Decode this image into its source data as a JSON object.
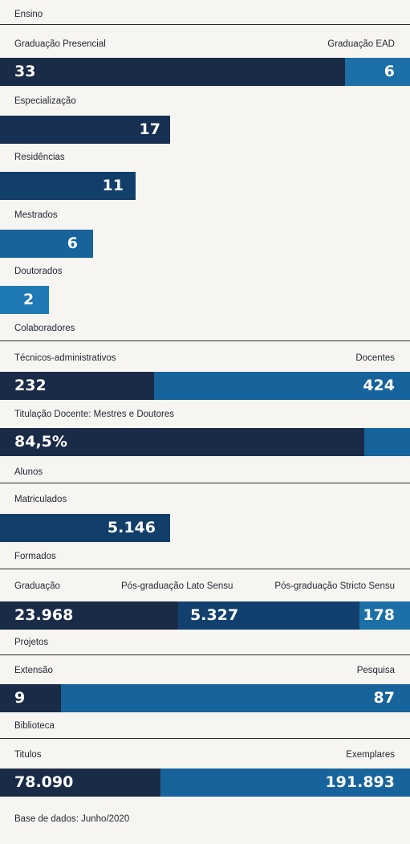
{
  "colors": {
    "background": "#f6f5f1",
    "dark": "#1a2b48",
    "mid": "#11406e",
    "blue": "#17639b",
    "light": "#1f79b4"
  },
  "sections": {
    "ensino": "Ensino",
    "colaboradores": "Colaboradores",
    "alunos": "Alunos",
    "formados": "Formados",
    "projetos": "Projetos",
    "biblioteca": "Biblioteca"
  },
  "labels": {
    "graduacao_presencial": "Graduação Presencial",
    "graduacao_ead": "Graduação EAD",
    "especializacao": "Especialização",
    "residencias": "Residências",
    "mestrados": "Mestrados",
    "doutorados": "Doutorados",
    "tecnicos": "Técnicos-administrativos",
    "docentes": "Docentes",
    "titulacao": "Titulação Docente: Mestres e Doutores",
    "matriculados": "Matriculados",
    "graduacao": "Graduação",
    "lato": "Pós-graduação Lato Sensu",
    "stricto": "Pós-graduação Stricto Sensu",
    "extensao": "Extensão",
    "pesquisa": "Pesquisa",
    "titulos": "Titulos",
    "exemplares": "Exemplares"
  },
  "values": {
    "graduacao_presencial": "33",
    "graduacao_ead": "6",
    "especializacao": "17",
    "residencias": "11",
    "mestrados": "6",
    "doutorados": "2",
    "tecnicos": "232",
    "docentes": "424",
    "titulacao": "84,5%",
    "matriculados": "5.146",
    "graduacao": "23.968",
    "lato": "5.327",
    "stricto": "178",
    "extensao": "9",
    "pesquisa": "87",
    "titulos": "78.090",
    "exemplares": "191.893"
  },
  "footer": "Base de dados: Junho/2020",
  "chart_data": [
    {
      "type": "bar",
      "title": "Ensino",
      "categories": [
        "Graduação Presencial",
        "Graduação EAD"
      ],
      "values": [
        33,
        6
      ]
    },
    {
      "type": "bar",
      "categories": [
        "Especialização",
        "Residências",
        "Mestrados",
        "Doutorados"
      ],
      "values": [
        17,
        11,
        6,
        2
      ]
    },
    {
      "type": "bar",
      "title": "Colaboradores",
      "categories": [
        "Técnicos-administrativos",
        "Docentes"
      ],
      "values": [
        232,
        424
      ]
    },
    {
      "type": "bar",
      "categories": [
        "Titulação Docente: Mestres e Doutores"
      ],
      "values": [
        84.5
      ]
    },
    {
      "type": "bar",
      "title": "Alunos",
      "categories": [
        "Matriculados"
      ],
      "values": [
        5146
      ]
    },
    {
      "type": "bar",
      "title": "Formados",
      "categories": [
        "Graduação",
        "Pós-graduação Lato Sensu",
        "Pós-graduação Stricto Sensu"
      ],
      "values": [
        23968,
        5327,
        178
      ]
    },
    {
      "type": "bar",
      "title": "Projetos",
      "categories": [
        "Extensão",
        "Pesquisa"
      ],
      "values": [
        9,
        87
      ]
    },
    {
      "type": "bar",
      "title": "Biblioteca",
      "categories": [
        "Titulos",
        "Exemplares"
      ],
      "values": [
        78090,
        191893
      ]
    }
  ]
}
